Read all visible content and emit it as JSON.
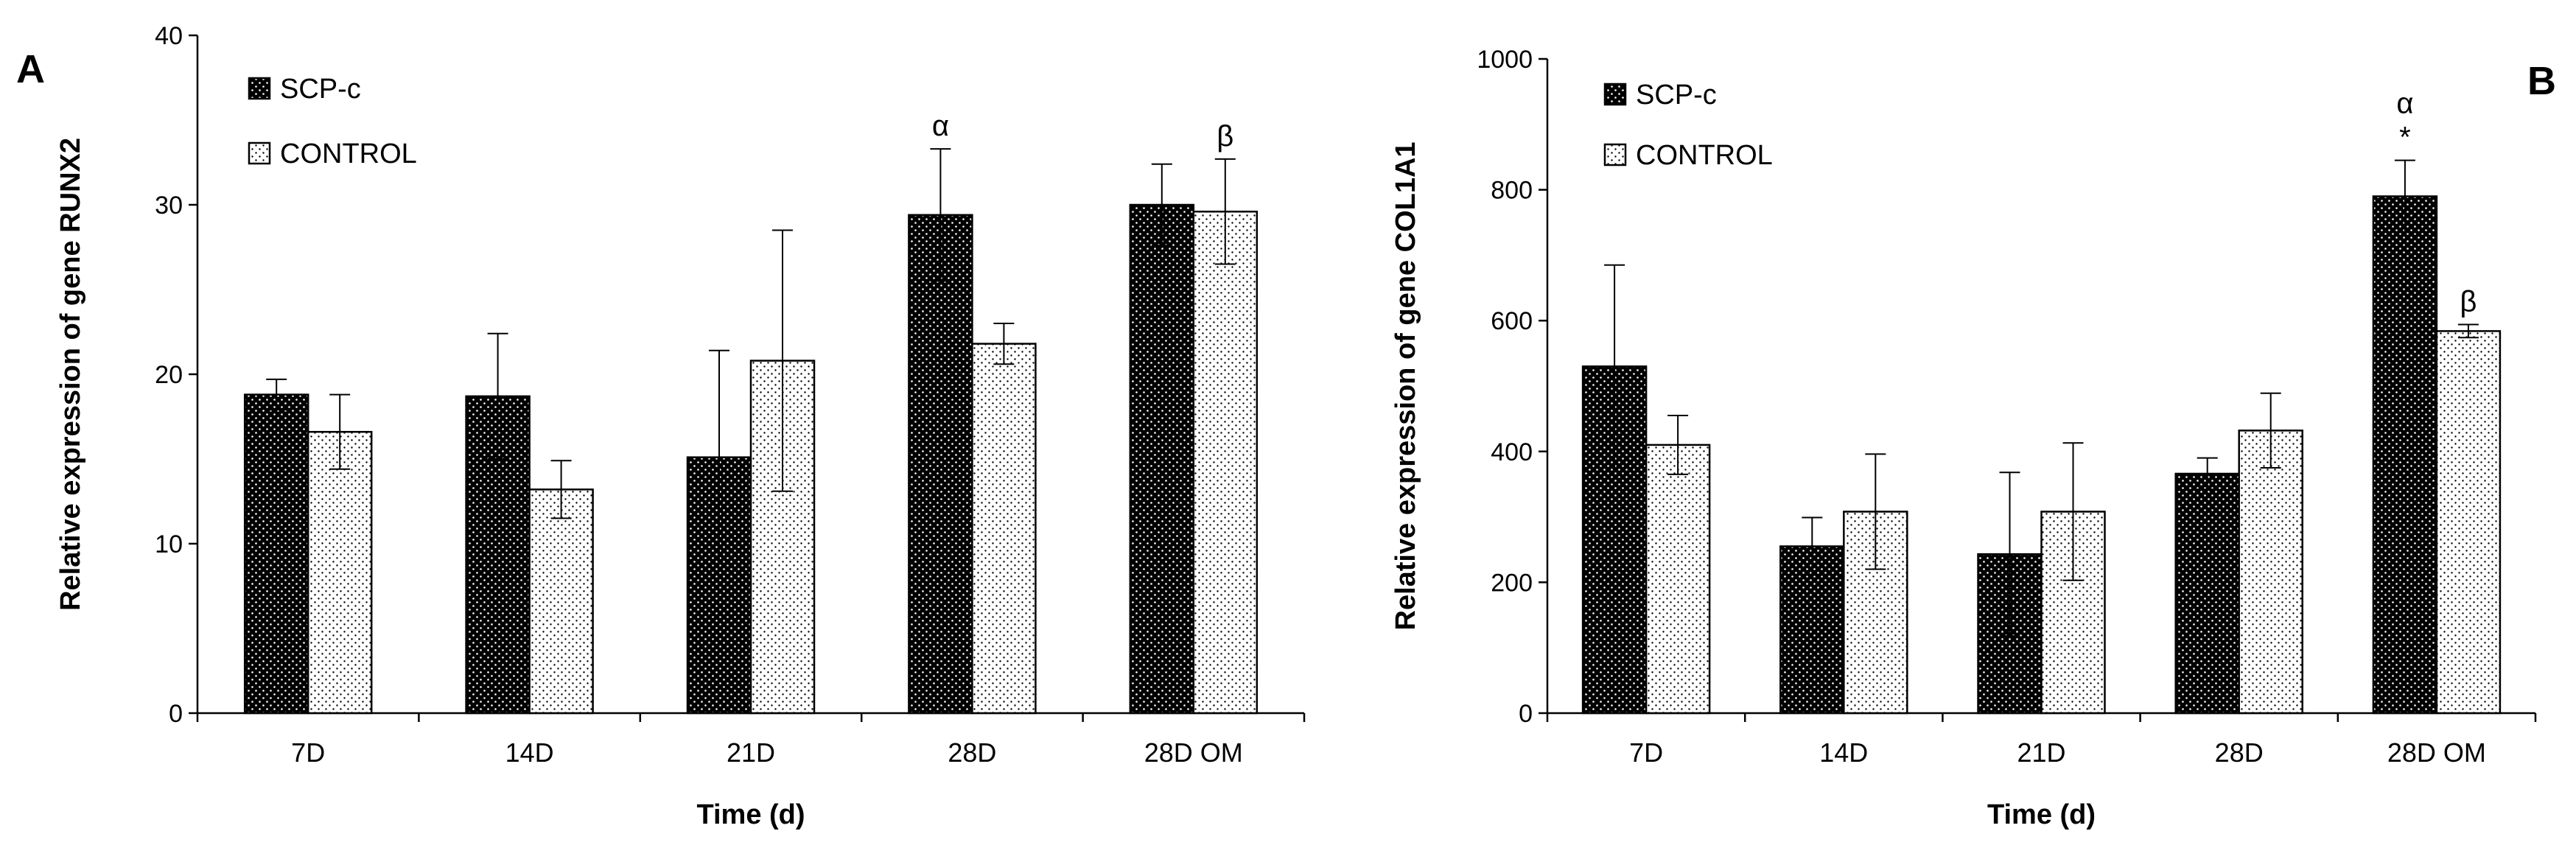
{
  "chart_data": [
    {
      "type": "bar",
      "panel_label": "A",
      "title": "",
      "xlabel": "Time (d)",
      "ylabel": "Relative expression of gene RUNX2",
      "ylim": [
        0,
        40
      ],
      "yticks": [
        0,
        10,
        20,
        30,
        40
      ],
      "categories": [
        "7D",
        "14D",
        "21D",
        "28D",
        "28D OM"
      ],
      "legend": {
        "placement": "top-left",
        "entries": [
          "SCP-c",
          "CONTROL"
        ]
      },
      "series": [
        {
          "name": "SCP-c",
          "color": "#000000",
          "pattern": "dark-dotted",
          "values": [
            18.8,
            18.7,
            15.1,
            29.4,
            30.0
          ],
          "errors": [
            0.9,
            3.7,
            6.3,
            3.9,
            2.4
          ]
        },
        {
          "name": "CONTROL",
          "color": "#ffffff",
          "pattern": "light-dotted",
          "values": [
            16.6,
            13.2,
            20.8,
            21.8,
            29.6
          ],
          "errors": [
            2.2,
            1.7,
            7.7,
            1.2,
            3.1
          ]
        }
      ],
      "annotations": [
        {
          "text": "α",
          "category": "28D",
          "series": "SCP-c"
        },
        {
          "text": "β",
          "category": "28D OM",
          "series": "CONTROL"
        }
      ]
    },
    {
      "type": "bar",
      "panel_label": "B",
      "title": "",
      "xlabel": "Time (d)",
      "ylabel": "Relative expression of gene COL1A1",
      "ylim": [
        0,
        1000
      ],
      "yticks": [
        0,
        200,
        400,
        600,
        800,
        1000
      ],
      "categories": [
        "7D",
        "14D",
        "21D",
        "28D",
        "28D OM"
      ],
      "legend": {
        "placement": "top-left",
        "entries": [
          "SCP-c",
          "CONTROL"
        ]
      },
      "series": [
        {
          "name": "SCP-c",
          "color": "#000000",
          "pattern": "dark-dotted",
          "values": [
            530,
            255,
            243,
            366,
            790
          ],
          "errors": [
            155,
            44,
            125,
            24,
            55
          ]
        },
        {
          "name": "CONTROL",
          "color": "#ffffff",
          "pattern": "light-dotted",
          "values": [
            410,
            308,
            308,
            432,
            584
          ],
          "errors": [
            45,
            88,
            105,
            57,
            10
          ]
        }
      ],
      "annotations": [
        {
          "text": "α",
          "category": "28D OM",
          "series": "SCP-c"
        },
        {
          "text": "*",
          "category": "28D OM",
          "series": "SCP-c"
        },
        {
          "text": "β",
          "category": "28D OM",
          "series": "CONTROL"
        }
      ]
    }
  ]
}
